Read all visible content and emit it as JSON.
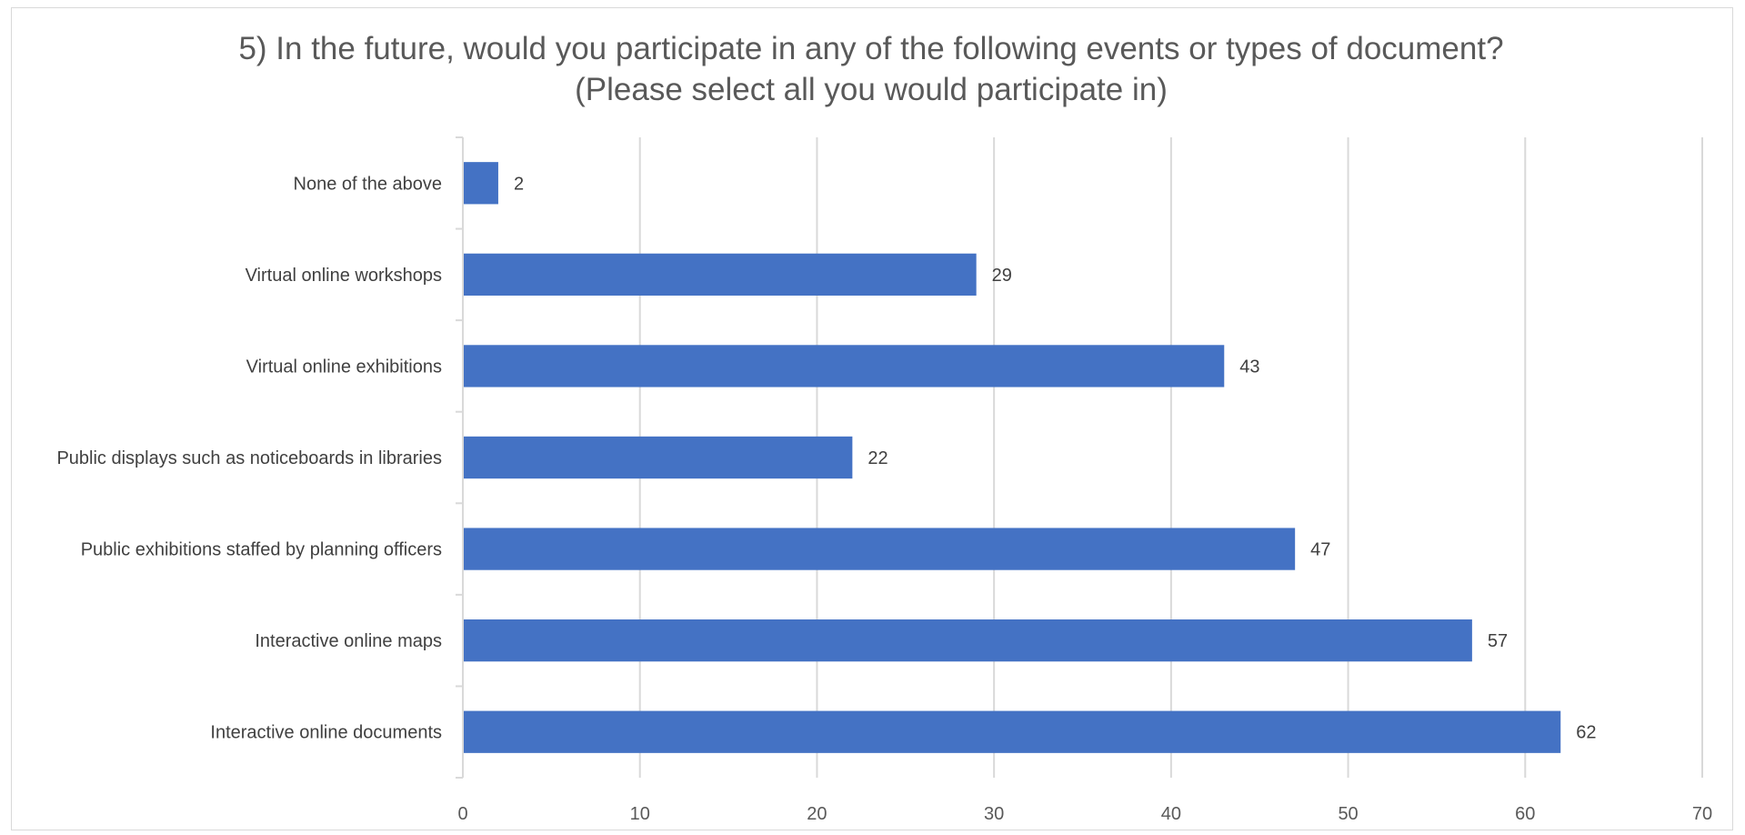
{
  "chart_data": {
    "type": "bar",
    "orientation": "horizontal",
    "title": "5) In the future, would you participate in any of the following events or types of document? (Please select all you would participate in)",
    "title_lines": [
      "5) In the future, would you participate in any of the following events or types of document?",
      "(Please select all you would participate in)"
    ],
    "categories": [
      "None of the above",
      "Virtual online workshops",
      "Virtual online exhibitions",
      "Public displays such as noticeboards in libraries",
      "Public exhibitions staffed by planning officers",
      "Interactive online maps",
      "Interactive online documents"
    ],
    "values": [
      2,
      29,
      43,
      22,
      47,
      57,
      62
    ],
    "xlim": [
      0,
      70
    ],
    "xticks": [
      0,
      10,
      20,
      30,
      40,
      50,
      60,
      70
    ],
    "xlabel": "",
    "ylabel": "",
    "grid": "vertical",
    "legend": "none",
    "data_labels": true,
    "bar_color": "#4472C4",
    "gridline_color": "#d9d9d9"
  }
}
